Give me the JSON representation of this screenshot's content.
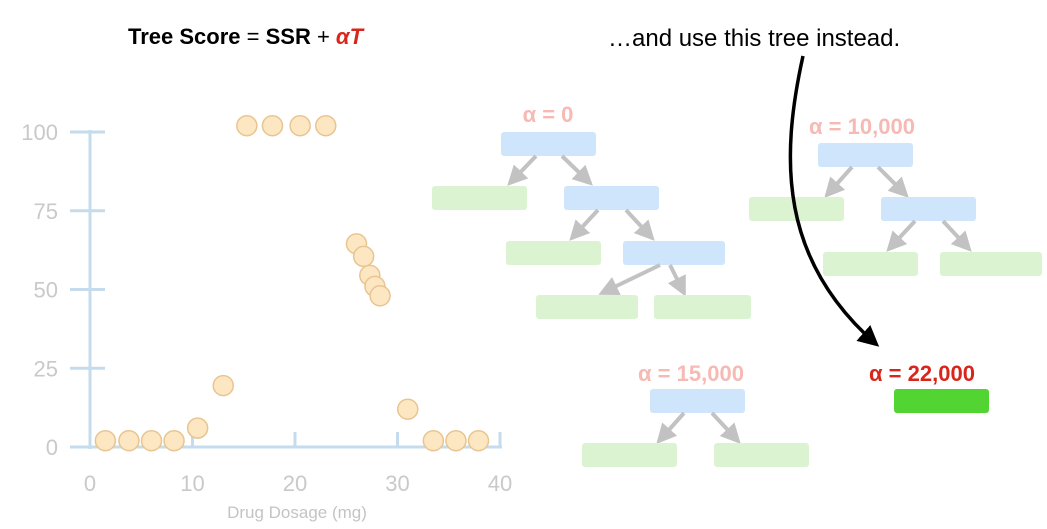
{
  "title": {
    "prefix": "Tree Score",
    "equals": " = ",
    "ssr": "SSR",
    "plus": " + ",
    "alpha_t": "αT"
  },
  "annotation": "…and use this tree instead.",
  "chart_data": {
    "type": "scatter",
    "xlabel": "Drug Dosage (mg)",
    "ylabel": "",
    "xlim": [
      0,
      40
    ],
    "ylim": [
      0,
      100
    ],
    "x_ticks": [
      0,
      10,
      20,
      30,
      40
    ],
    "y_ticks": [
      0,
      25,
      50,
      75,
      100
    ],
    "point_color": "#fde6c2",
    "point_stroke": "#e8c590",
    "axis_color": "#c5dcee",
    "points": [
      {
        "x": 1.5,
        "y": 2
      },
      {
        "x": 3.8,
        "y": 2
      },
      {
        "x": 6,
        "y": 2
      },
      {
        "x": 8.2,
        "y": 2
      },
      {
        "x": 10.5,
        "y": 6
      },
      {
        "x": 13,
        "y": 19.5
      },
      {
        "x": 15.3,
        "y": 102
      },
      {
        "x": 17.8,
        "y": 102
      },
      {
        "x": 20.5,
        "y": 102
      },
      {
        "x": 23,
        "y": 102
      },
      {
        "x": 26,
        "y": 64.5
      },
      {
        "x": 26.7,
        "y": 60.5
      },
      {
        "x": 27.3,
        "y": 54.5
      },
      {
        "x": 27.8,
        "y": 51
      },
      {
        "x": 28.3,
        "y": 48
      },
      {
        "x": 31,
        "y": 12
      },
      {
        "x": 33.5,
        "y": 2
      },
      {
        "x": 35.7,
        "y": 2
      },
      {
        "x": 37.9,
        "y": 2
      }
    ]
  },
  "trees": [
    {
      "label": "α = 0",
      "state": "faded"
    },
    {
      "label": "α = 10,000",
      "state": "faded"
    },
    {
      "label": "α = 15,000",
      "state": "faded"
    },
    {
      "label": "α = 22,000",
      "state": "selected"
    }
  ],
  "colors": {
    "node_faded": "#cfe5fb",
    "leaf_faded": "#dcf3d2",
    "leaf_selected": "#52d433",
    "arrow_faded": "#c2c2c2",
    "label_faded": "#f6b9b4",
    "label_selected": "#d9261c",
    "curve_arrow": "#000000"
  }
}
